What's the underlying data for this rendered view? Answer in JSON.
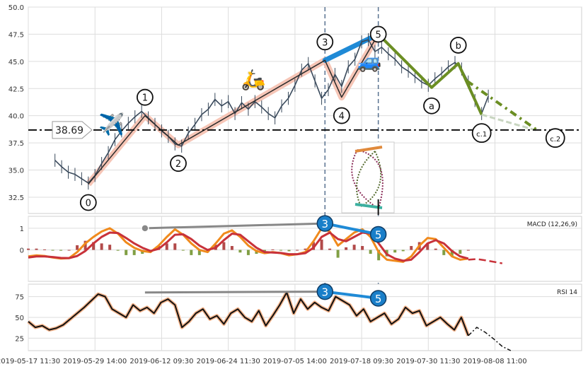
{
  "chart_data": [
    {
      "id": "price",
      "type": "line",
      "subtype": "ohlc-with-elliott-wave-annotations",
      "title": "",
      "xlabel": "",
      "ylabel": "",
      "ylim": [
        31,
        50
      ],
      "yticks": [
        "50.0",
        "47.5",
        "45.0",
        "42.5",
        "40.0",
        "37.5",
        "35.0",
        "32.5"
      ],
      "ytick_values": [
        50,
        47.5,
        45,
        42.5,
        40,
        37.5,
        35,
        32.5
      ],
      "xlim": [
        0,
        83
      ],
      "grid": true,
      "price_line": {
        "value": 38.69,
        "label": "38.69",
        "style": "dash-dot"
      },
      "price_series": {
        "x": [
          0,
          1,
          2,
          3,
          4,
          5,
          6,
          7,
          8,
          9,
          10,
          11,
          12,
          13,
          14,
          15,
          16,
          17,
          18,
          19,
          20,
          21,
          22,
          23,
          24,
          25,
          26,
          27,
          28,
          29,
          30,
          31,
          32,
          33,
          34,
          35,
          36,
          37,
          38,
          39,
          40,
          41,
          42,
          43,
          44,
          45,
          46,
          47,
          48,
          49,
          50,
          51,
          52,
          53,
          54,
          55,
          56,
          57,
          58,
          59,
          60,
          61,
          62,
          63,
          64,
          65
        ],
        "y": [
          35.9,
          35.3,
          34.8,
          34.6,
          34.2,
          33.8,
          34.5,
          35.6,
          36.6,
          37.8,
          38.6,
          39.3,
          39.9,
          40.4,
          39.8,
          39.2,
          38.6,
          38.1,
          37.4,
          37.2,
          38.4,
          39.2,
          40.1,
          40.6,
          41.5,
          40.9,
          41.3,
          40.2,
          41.2,
          40.6,
          41.3,
          40.8,
          40.2,
          39.8,
          40.9,
          41.6,
          42.8,
          44.2,
          44.8,
          43.2,
          41.6,
          42.4,
          43.8,
          42.7,
          44.5,
          45.2,
          46.8,
          47.0,
          45.9,
          46.3,
          45.7,
          45.2,
          44.5,
          44.1,
          43.6,
          43.1,
          42.8,
          43.4,
          43.9,
          44.5,
          44.9,
          44.3,
          43.1,
          41.4,
          40.2,
          41.8
        ],
        "color": "#3a4a5c"
      },
      "waves": [
        {
          "label": "0",
          "x": 9,
          "y": 33.7
        },
        {
          "label": "1",
          "x": 17.5,
          "y": 40.0
        },
        {
          "label": "2",
          "x": 22.5,
          "y": 37.3
        },
        {
          "label": "3",
          "x": 44.5,
          "y": 45.1
        },
        {
          "label": "4",
          "x": 47,
          "y": 41.7
        },
        {
          "label": "5",
          "x": 52.5,
          "y": 47.5
        },
        {
          "label": "a",
          "x": 60.5,
          "y": 42.6
        },
        {
          "label": "b",
          "x": 64.5,
          "y": 44.8
        },
        {
          "label": "c.1",
          "x": 68,
          "y": 40.1
        },
        {
          "label": "c.2",
          "x": 76.5,
          "y": 38.6
        }
      ],
      "channel_35": {
        "color": "#1f8ad6"
      },
      "impulse_color": "#f5bfae",
      "corrective_color": "#6b8e23",
      "projection_color": "#c8d5c0",
      "vlines_x": [
        44.5,
        52.5
      ],
      "icons": [
        "airplane-icon",
        "scooter-icon",
        "car-icon",
        "pattern-inset-icon"
      ]
    },
    {
      "id": "macd",
      "type": "line",
      "title": "MACD (12,26,9)",
      "ylim": [
        -1.45,
        1.55
      ],
      "yticks": [
        "1",
        "0"
      ],
      "ytick_values": [
        1,
        0
      ],
      "macd": [
        -0.3,
        -0.25,
        -0.28,
        -0.35,
        -0.4,
        -0.38,
        -0.1,
        0.3,
        0.6,
        0.85,
        1.0,
        0.75,
        0.35,
        0.1,
        -0.05,
        -0.1,
        0.2,
        0.6,
        0.95,
        0.7,
        0.3,
        0.0,
        -0.1,
        0.3,
        0.75,
        0.9,
        0.6,
        0.2,
        -0.05,
        -0.15,
        -0.1,
        -0.15,
        -0.25,
        -0.2,
        -0.1,
        0.4,
        1.0,
        0.85,
        0.2,
        0.5,
        0.8,
        0.95,
        0.6,
        -0.1,
        -0.45,
        -0.5,
        -0.55,
        -0.3,
        0.2,
        0.55,
        0.5,
        0.1,
        -0.3,
        -0.45,
        -0.4
      ],
      "signal": [
        -0.35,
        -0.3,
        -0.3,
        -0.33,
        -0.37,
        -0.38,
        -0.28,
        -0.05,
        0.3,
        0.6,
        0.8,
        0.78,
        0.55,
        0.3,
        0.1,
        -0.05,
        0.05,
        0.35,
        0.7,
        0.72,
        0.5,
        0.2,
        0.0,
        0.1,
        0.45,
        0.75,
        0.7,
        0.4,
        0.1,
        -0.1,
        -0.12,
        -0.14,
        -0.2,
        -0.2,
        -0.15,
        0.1,
        0.6,
        0.8,
        0.5,
        0.4,
        0.6,
        0.8,
        0.75,
        0.3,
        -0.2,
        -0.4,
        -0.5,
        -0.45,
        -0.1,
        0.3,
        0.45,
        0.3,
        -0.05,
        -0.3,
        -0.4
      ],
      "projection": [
        -0.45,
        -0.42,
        -0.48,
        -0.55,
        -0.62
      ],
      "wave_marks": [
        {
          "label": "3",
          "x": 44.5,
          "y": 1.22
        },
        {
          "label": "5",
          "x": 52.5,
          "y": 0.72
        }
      ],
      "divergence_start": {
        "x": 17.5,
        "y": 1.0
      }
    },
    {
      "id": "rsi",
      "type": "line",
      "title": "RSI 14",
      "ylim": [
        10,
        90
      ],
      "yticks": [
        "75",
        "50",
        "25"
      ],
      "ytick_values": [
        75,
        50,
        25
      ],
      "rsi": [
        45,
        38,
        40,
        35,
        37,
        41,
        48,
        55,
        62,
        70,
        78,
        75,
        60,
        55,
        50,
        65,
        58,
        62,
        55,
        68,
        72,
        65,
        38,
        45,
        55,
        60,
        48,
        52,
        42,
        55,
        60,
        50,
        45,
        58,
        40,
        52,
        65,
        80,
        55,
        72,
        60,
        68,
        62,
        58,
        75,
        70,
        65,
        52,
        60,
        45,
        50,
        55,
        42,
        48,
        62,
        55,
        58,
        40,
        45,
        50,
        42,
        35,
        50,
        28
      ],
      "projection": [
        38,
        32,
        24,
        15,
        10
      ],
      "wave_marks": [
        {
          "label": "3",
          "x": 44.5,
          "y": 81
        },
        {
          "label": "5",
          "x": 52.5,
          "y": 73
        }
      ],
      "divergence_start": {
        "x": 17.5,
        "y": 80
      }
    }
  ],
  "x_axis": {
    "ticks": [
      "2019-05-17 11:30",
      "2019-05-29 14:00",
      "2019-06-12 09:30",
      "2019-06-24 11:30",
      "2019-07-05 14:00",
      "2019-07-18 09:30",
      "2019-07-30 11:30",
      "2019-08-08 11:00"
    ],
    "tick_x": [
      0,
      10,
      20,
      30,
      40,
      50,
      60,
      70
    ]
  }
}
